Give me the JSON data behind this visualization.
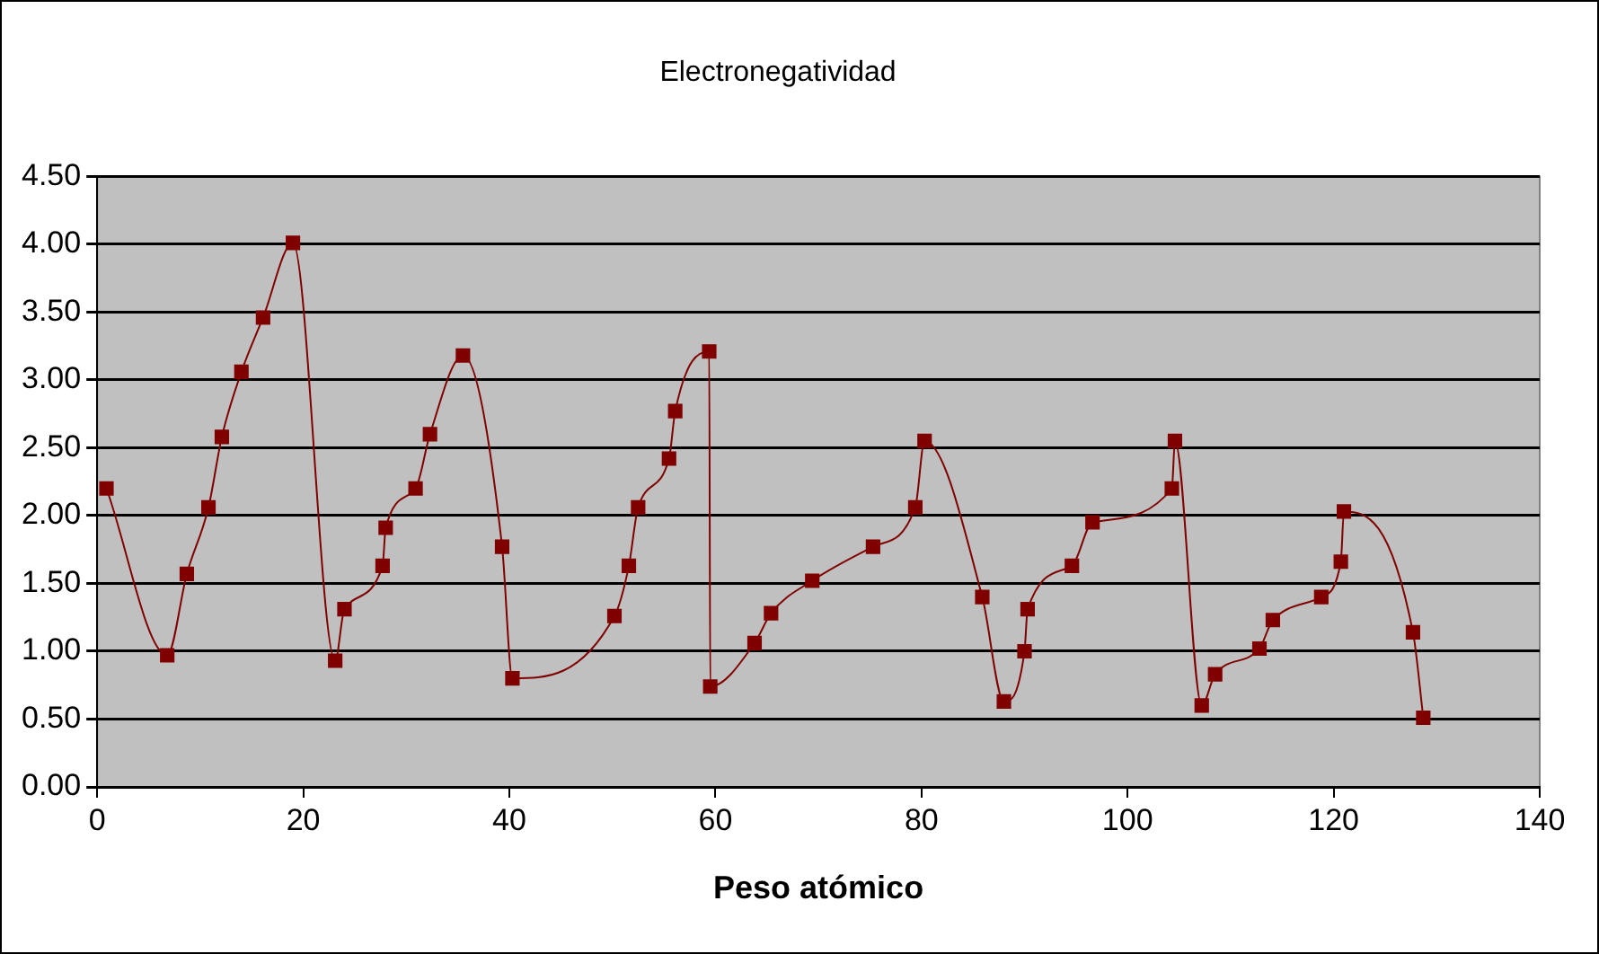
{
  "chart_data": {
    "type": "line",
    "title": "Electronegatividad",
    "xlabel": "Peso atómico",
    "x": [
      0.9,
      6.8,
      8.7,
      10.8,
      12.1,
      14.0,
      16.1,
      19.0,
      23.1,
      24.0,
      27.7,
      28.0,
      30.9,
      32.3,
      35.5,
      39.3,
      40.3,
      50.2,
      51.6,
      52.5,
      55.5,
      56.1,
      59.4,
      59.5,
      63.8,
      65.4,
      69.4,
      75.3,
      79.4,
      80.3,
      85.9,
      88.0,
      90.0,
      90.3,
      94.6,
      96.6,
      104.3,
      104.6,
      107.2,
      108.5,
      112.8,
      114.1,
      118.8,
      120.7,
      121.0,
      127.7,
      128.7
    ],
    "series": [
      {
        "color": "#800000",
        "values": [
          2.2,
          0.97,
          1.57,
          2.06,
          2.58,
          3.06,
          3.46,
          4.01,
          0.93,
          1.31,
          1.63,
          1.91,
          2.2,
          2.6,
          3.18,
          1.77,
          0.8,
          1.26,
          1.63,
          2.06,
          2.42,
          2.77,
          3.21,
          0.74,
          1.06,
          1.28,
          1.52,
          1.77,
          2.06,
          2.55,
          1.4,
          0.63,
          1.0,
          1.31,
          1.63,
          1.95,
          2.2,
          2.55,
          0.6,
          0.83,
          1.02,
          1.23,
          1.4,
          1.66,
          2.03,
          1.14,
          0.51
        ]
      }
    ],
    "xlim": [
      0,
      140
    ],
    "xticks": [
      0,
      20,
      40,
      60,
      80,
      100,
      120,
      140
    ],
    "ylim": [
      0,
      4.5
    ],
    "yticks": [
      {
        "value": 0,
        "label": "0.00"
      },
      {
        "value": 0.5,
        "label": "0.50"
      },
      {
        "value": 1,
        "label": "1.00"
      },
      {
        "value": 1.5,
        "label": "1.50"
      },
      {
        "value": 2,
        "label": "2.00"
      },
      {
        "value": 2.5,
        "label": "2.50"
      },
      {
        "value": 3,
        "label": "3.00"
      },
      {
        "value": 3.5,
        "label": "3.50"
      },
      {
        "value": 4,
        "label": "4.00"
      },
      {
        "value": 4.5,
        "label": "4.50"
      }
    ],
    "grid": "y",
    "legend": false,
    "marker": "square",
    "line_style": "solid"
  }
}
